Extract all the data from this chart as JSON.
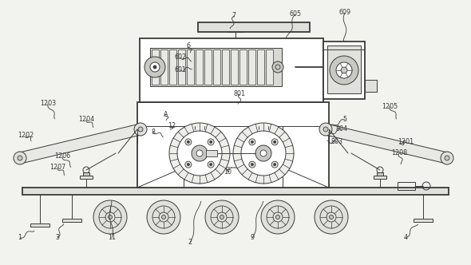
{
  "bg_color": "#f2f2ee",
  "line_color": "#3a3a3a",
  "lw": 0.7,
  "tlw": 1.3,
  "white": "#ffffff",
  "gray_light": "#e0e0dc",
  "gray_mid": "#c8c8c4"
}
